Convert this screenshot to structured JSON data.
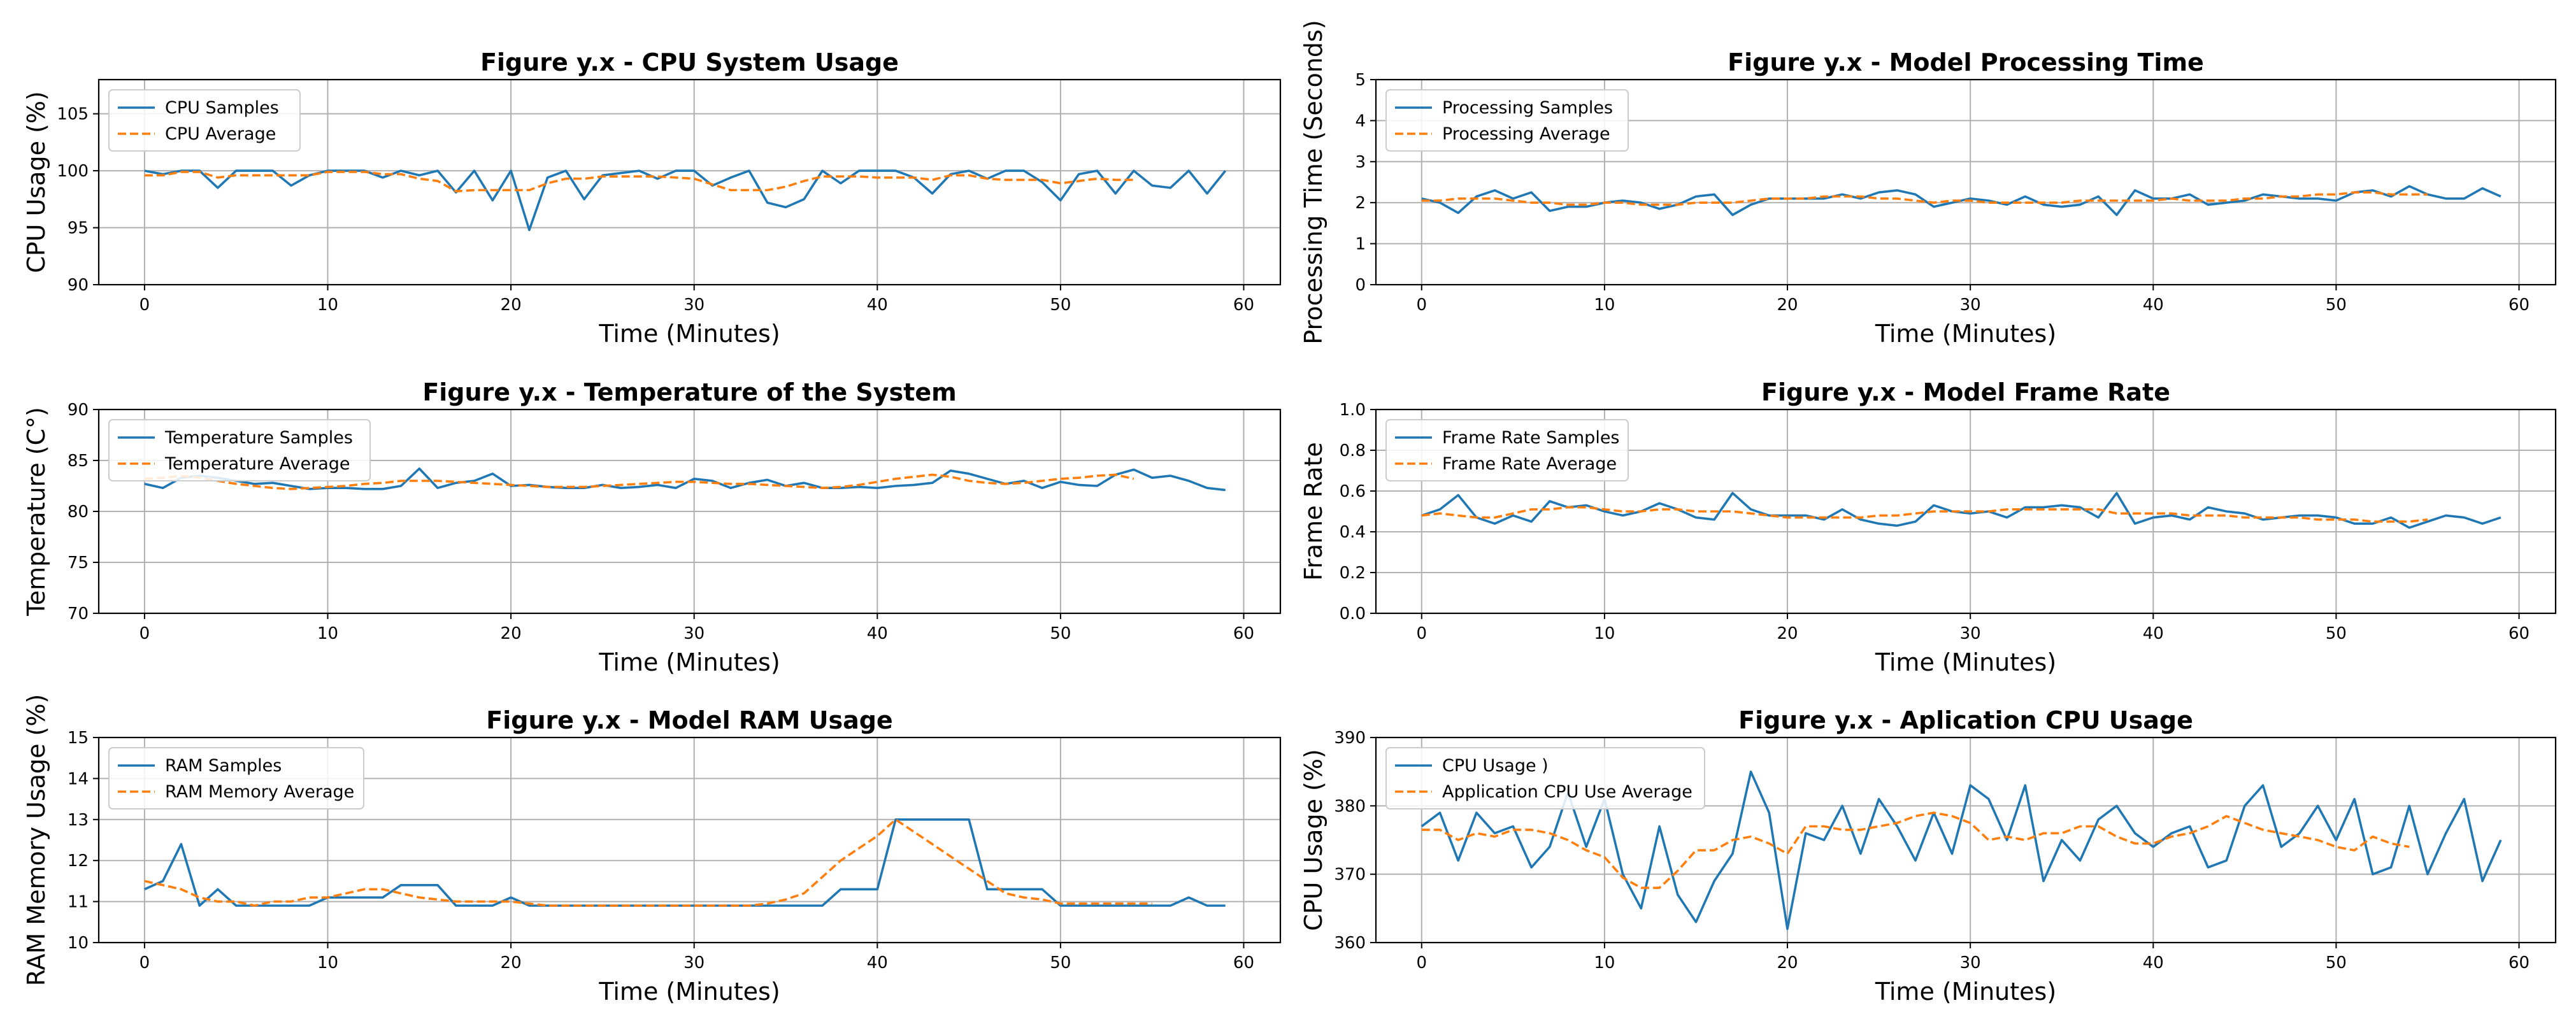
{
  "colors": {
    "samples": "#1f77b4",
    "average": "#ff7f0e",
    "grid": "#b0b0b0",
    "axis": "#000000"
  },
  "chart_data": [
    {
      "type": "line",
      "title": "Figure y.x - CPU System Usage",
      "xlabel": "Time (Minutes)",
      "ylabel": "CPU Usage (%)",
      "xlim": [
        -2.5,
        62
      ],
      "ylim": [
        90,
        108
      ],
      "xticks": [
        0,
        10,
        20,
        30,
        40,
        50,
        60
      ],
      "yticks": [
        90,
        95,
        100,
        105
      ],
      "grid": true,
      "legend_position": "top-left",
      "series": [
        {
          "name": "CPU Samples",
          "style": "solid",
          "x_start": 0,
          "values": [
            100,
            99.7,
            100,
            100,
            98.5,
            100,
            100,
            100,
            98.7,
            99.6,
            100,
            100,
            100,
            99.4,
            100,
            99.6,
            100,
            98.1,
            100,
            97.4,
            100,
            94.8,
            99.4,
            100,
            97.5,
            99.6,
            99.8,
            100,
            99.3,
            100,
            100,
            98.7,
            99.4,
            100,
            97.2,
            96.8,
            97.5,
            100,
            98.9,
            100,
            100,
            100,
            99.4,
            98,
            99.7,
            100,
            99.3,
            100,
            100,
            99,
            97.4,
            99.7,
            100,
            98,
            100,
            98.7,
            98.5,
            100,
            98,
            100
          ]
        },
        {
          "name": "CPU Average",
          "style": "dashed",
          "x_start": 0,
          "values": [
            99.6,
            99.6,
            99.9,
            99.9,
            99.4,
            99.6,
            99.6,
            99.6,
            99.6,
            99.6,
            99.9,
            99.9,
            99.9,
            99.7,
            99.7,
            99.3,
            99.1,
            98.2,
            98.3,
            98.3,
            98.3,
            98.3,
            98.9,
            99.3,
            99.3,
            99.5,
            99.5,
            99.5,
            99.5,
            99.4,
            99.3,
            98.8,
            98.3,
            98.3,
            98.3,
            98.6,
            99.1,
            99.5,
            99.5,
            99.5,
            99.4,
            99.4,
            99.4,
            99.2,
            99.6,
            99.6,
            99.3,
            99.2,
            99.2,
            99.2,
            98.9,
            99.1,
            99.3,
            99.2,
            99.2
          ]
        }
      ]
    },
    {
      "type": "line",
      "title": "Figure y.x - Model Processing Time",
      "xlabel": "Time (Minutes)",
      "ylabel": "Processing Time (Seconds)",
      "xlim": [
        -2.5,
        62
      ],
      "ylim": [
        0,
        5
      ],
      "xticks": [
        0,
        10,
        20,
        30,
        40,
        50,
        60
      ],
      "yticks": [
        0,
        1,
        2,
        3,
        4,
        5
      ],
      "grid": true,
      "legend_position": "top-left",
      "series": [
        {
          "name": "Processing Samples",
          "style": "solid",
          "x_start": 0,
          "values": [
            2.1,
            2,
            1.75,
            2.15,
            2.3,
            2.1,
            2.25,
            1.8,
            1.9,
            1.9,
            2,
            2.05,
            2,
            1.85,
            1.95,
            2.15,
            2.2,
            1.7,
            1.95,
            2.1,
            2.1,
            2.1,
            2.1,
            2.2,
            2.1,
            2.25,
            2.3,
            2.2,
            1.9,
            2,
            2.1,
            2.05,
            1.95,
            2.15,
            1.95,
            1.9,
            1.95,
            2.15,
            1.7,
            2.3,
            2.1,
            2.1,
            2.2,
            1.95,
            2,
            2.05,
            2.2,
            2.15,
            2.1,
            2.1,
            2.05,
            2.25,
            2.3,
            2.15,
            2.4,
            2.2,
            2.1,
            2.1,
            2.35,
            2.15
          ]
        },
        {
          "name": "Processing Average",
          "style": "dashed",
          "x_start": 0,
          "values": [
            2.05,
            2.05,
            2.1,
            2.1,
            2.1,
            2.05,
            2,
            2,
            1.95,
            1.95,
            2,
            2,
            1.95,
            1.95,
            1.95,
            2,
            2,
            2,
            2.05,
            2.1,
            2.1,
            2.1,
            2.15,
            2.15,
            2.15,
            2.1,
            2.1,
            2.05,
            2,
            2.05,
            2.05,
            2,
            2,
            2,
            2,
            2,
            2.05,
            2.05,
            2.05,
            2.05,
            2.05,
            2.1,
            2.05,
            2.05,
            2.05,
            2.1,
            2.1,
            2.15,
            2.15,
            2.2,
            2.2,
            2.25,
            2.25,
            2.2,
            2.2,
            2.2
          ]
        }
      ]
    },
    {
      "type": "line",
      "title": "Figure y.x - Temperature of the System",
      "xlabel": "Time (Minutes)",
      "ylabel": "Temperature (C°)",
      "xlim": [
        -2.5,
        62
      ],
      "ylim": [
        70,
        90
      ],
      "xticks": [
        0,
        10,
        20,
        30,
        40,
        50,
        60
      ],
      "yticks": [
        70,
        75,
        80,
        85,
        90
      ],
      "grid": true,
      "legend_position": "top-left",
      "series": [
        {
          "name": "Temperature Samples",
          "style": "solid",
          "x_start": 0,
          "values": [
            82.7,
            82.3,
            83.3,
            83.5,
            83.3,
            83,
            82.7,
            82.8,
            82.5,
            82.2,
            82.3,
            82.3,
            82.2,
            82.2,
            82.5,
            84.2,
            82.3,
            82.8,
            83,
            83.7,
            82.5,
            82.6,
            82.4,
            82.3,
            82.3,
            82.6,
            82.3,
            82.4,
            82.6,
            82.3,
            83.2,
            83,
            82.3,
            82.8,
            83.1,
            82.5,
            82.8,
            82.3,
            82.3,
            82.4,
            82.3,
            82.5,
            82.6,
            82.8,
            84,
            83.7,
            83.2,
            82.7,
            83,
            82.3,
            82.9,
            82.6,
            82.5,
            83.6,
            84.1,
            83.3,
            83.5,
            83,
            82.3,
            82.1
          ]
        },
        {
          "name": "Temperature Average",
          "style": "dashed",
          "x_start": 0,
          "values": [
            83.2,
            83.3,
            83.5,
            83.3,
            83,
            82.7,
            82.5,
            82.3,
            82.2,
            82.3,
            82.4,
            82.5,
            82.7,
            82.8,
            83,
            83,
            83,
            82.9,
            82.8,
            82.7,
            82.6,
            82.5,
            82.4,
            82.4,
            82.4,
            82.5,
            82.6,
            82.7,
            82.8,
            82.9,
            82.9,
            82.8,
            82.7,
            82.7,
            82.6,
            82.5,
            82.4,
            82.3,
            82.4,
            82.6,
            82.9,
            83.2,
            83.4,
            83.6,
            83.4,
            83,
            82.8,
            82.7,
            82.8,
            83,
            83.2,
            83.3,
            83.5,
            83.6,
            83.2
          ]
        }
      ]
    },
    {
      "type": "line",
      "title": "Figure y.x - Model Frame Rate",
      "xlabel": "Time (Minutes)",
      "ylabel": "Frame Rate",
      "xlim": [
        -2.5,
        62
      ],
      "ylim": [
        0,
        1
      ],
      "xticks": [
        0,
        10,
        20,
        30,
        40,
        50,
        60
      ],
      "yticks": [
        0.0,
        0.2,
        0.4,
        0.6,
        0.8,
        1.0
      ],
      "ytick_labels": [
        "0.0",
        "0.2",
        "0.4",
        "0.6",
        "0.8",
        "1.0"
      ],
      "grid": true,
      "legend_position": "top-left",
      "series": [
        {
          "name": "Frame Rate Samples",
          "style": "solid",
          "x_start": 0,
          "values": [
            0.48,
            0.51,
            0.58,
            0.47,
            0.44,
            0.48,
            0.45,
            0.55,
            0.52,
            0.53,
            0.5,
            0.48,
            0.5,
            0.54,
            0.51,
            0.47,
            0.46,
            0.59,
            0.51,
            0.48,
            0.48,
            0.48,
            0.46,
            0.51,
            0.46,
            0.44,
            0.43,
            0.45,
            0.53,
            0.5,
            0.49,
            0.5,
            0.47,
            0.52,
            0.52,
            0.53,
            0.52,
            0.47,
            0.59,
            0.44,
            0.47,
            0.48,
            0.46,
            0.52,
            0.5,
            0.49,
            0.46,
            0.47,
            0.48,
            0.48,
            0.47,
            0.44,
            0.44,
            0.47,
            0.42,
            0.45,
            0.48,
            0.47,
            0.44,
            0.47
          ]
        },
        {
          "name": "Frame Rate Average",
          "style": "dashed",
          "x_start": 0,
          "values": [
            0.48,
            0.49,
            0.48,
            0.47,
            0.47,
            0.49,
            0.51,
            0.51,
            0.52,
            0.52,
            0.51,
            0.5,
            0.5,
            0.51,
            0.51,
            0.5,
            0.5,
            0.5,
            0.49,
            0.48,
            0.47,
            0.47,
            0.47,
            0.47,
            0.47,
            0.48,
            0.48,
            0.49,
            0.5,
            0.5,
            0.5,
            0.5,
            0.51,
            0.51,
            0.51,
            0.51,
            0.51,
            0.51,
            0.49,
            0.49,
            0.49,
            0.49,
            0.48,
            0.48,
            0.48,
            0.47,
            0.47,
            0.47,
            0.47,
            0.46,
            0.46,
            0.46,
            0.45,
            0.45,
            0.45,
            0.46
          ]
        }
      ]
    },
    {
      "type": "line",
      "title": "Figure y.x - Model RAM Usage",
      "xlabel": "Time (Minutes)",
      "ylabel": "RAM Memory Usage (%)",
      "xlim": [
        -2.5,
        62
      ],
      "ylim": [
        10,
        15
      ],
      "xticks": [
        0,
        10,
        20,
        30,
        40,
        50,
        60
      ],
      "yticks": [
        10,
        11,
        12,
        13,
        14,
        15
      ],
      "grid": true,
      "legend_position": "top-left",
      "series": [
        {
          "name": "RAM Samples",
          "style": "solid",
          "x_start": 0,
          "values": [
            11.3,
            11.5,
            12.4,
            10.9,
            11.3,
            10.9,
            10.9,
            10.9,
            10.9,
            10.9,
            11.1,
            11.1,
            11.1,
            11.1,
            11.4,
            11.4,
            11.4,
            10.9,
            10.9,
            10.9,
            11.1,
            10.9,
            10.9,
            10.9,
            10.9,
            10.9,
            10.9,
            10.9,
            10.9,
            10.9,
            10.9,
            10.9,
            10.9,
            10.9,
            10.9,
            10.9,
            10.9,
            10.9,
            11.3,
            11.3,
            11.3,
            13,
            13,
            13,
            13,
            13,
            11.3,
            11.3,
            11.3,
            11.3,
            10.9,
            10.9,
            10.9,
            10.9,
            10.9,
            10.9,
            10.9,
            11.1,
            10.9,
            10.9
          ]
        },
        {
          "name": "RAM Memory Average",
          "style": "dashed",
          "x_start": 0,
          "values": [
            11.5,
            11.4,
            11.3,
            11.1,
            11,
            11,
            10.9,
            11,
            11,
            11.1,
            11.1,
            11.2,
            11.3,
            11.3,
            11.2,
            11.1,
            11.05,
            11,
            11,
            11,
            11,
            10.95,
            10.9,
            10.9,
            10.9,
            10.9,
            10.9,
            10.9,
            10.9,
            10.9,
            10.9,
            10.9,
            10.9,
            10.9,
            10.95,
            11.05,
            11.2,
            11.6,
            12,
            12.3,
            12.6,
            13,
            12.7,
            12.4,
            12.1,
            11.8,
            11.5,
            11.2,
            11.1,
            11.05,
            10.95,
            10.95,
            10.95,
            10.95,
            10.95,
            10.95
          ]
        }
      ]
    },
    {
      "type": "line",
      "title": "Figure y.x - Aplication CPU Usage",
      "xlabel": "Time (Minutes)",
      "ylabel": "CPU Usage (%)",
      "xlim": [
        -2.5,
        62
      ],
      "ylim": [
        360,
        390
      ],
      "xticks": [
        0,
        10,
        20,
        30,
        40,
        50,
        60
      ],
      "yticks": [
        360,
        370,
        380,
        390
      ],
      "grid": true,
      "legend_position": "top-left",
      "series": [
        {
          "name": " CPU Usage )",
          "style": "solid",
          "x_start": 0,
          "values": [
            377,
            379,
            372,
            379,
            376,
            377,
            371,
            374,
            382,
            374,
            381,
            370,
            365,
            377,
            367,
            363,
            369,
            373,
            385,
            379,
            362,
            376,
            375,
            380,
            373,
            381,
            377,
            372,
            379,
            373,
            383,
            381,
            375,
            383,
            369,
            375,
            372,
            378,
            380,
            376,
            374,
            376,
            377,
            371,
            372,
            380,
            383,
            374,
            376,
            380,
            375,
            381,
            370,
            371,
            380,
            370,
            376,
            381,
            369,
            375
          ]
        },
        {
          "name": "Application CPU Use Average",
          "style": "dashed",
          "x_start": 0,
          "values": [
            376.5,
            376.5,
            375,
            376,
            375.5,
            376.5,
            376.5,
            376,
            375,
            373.5,
            372.5,
            369.5,
            368,
            368,
            370.5,
            373.5,
            373.5,
            375,
            375.5,
            374.5,
            373,
            377,
            377,
            376.5,
            376.5,
            377,
            377.5,
            378.5,
            379,
            378.5,
            377.5,
            375,
            375.5,
            375,
            376,
            376,
            377,
            377,
            375.5,
            374.5,
            374.5,
            375.5,
            376,
            377,
            378.5,
            377.5,
            376.5,
            376,
            375.5,
            375,
            374,
            373.5,
            375.5,
            374.5,
            374
          ]
        }
      ]
    }
  ]
}
